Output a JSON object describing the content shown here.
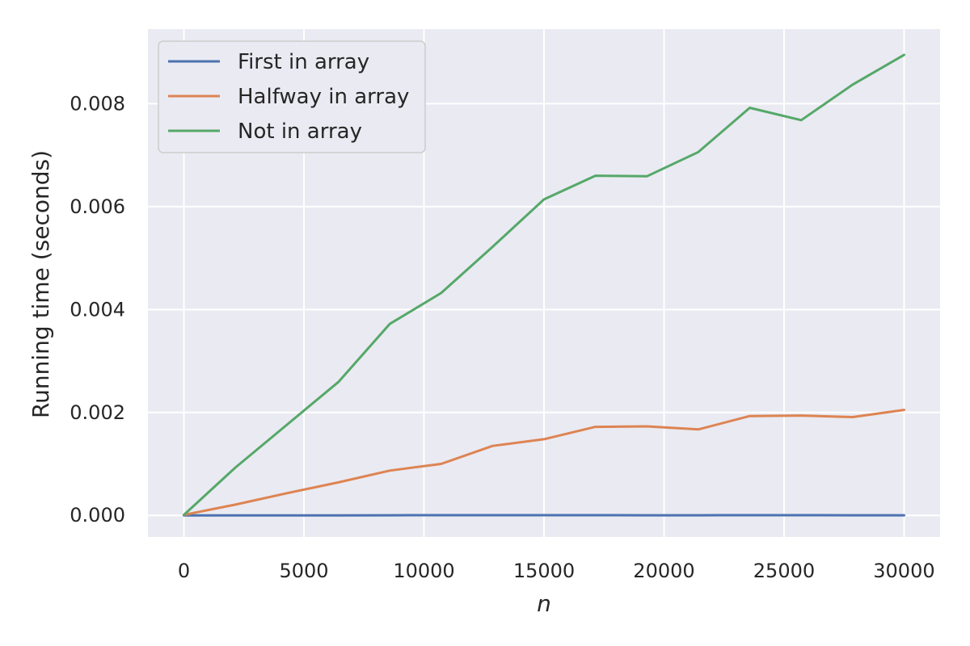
{
  "chart_data": {
    "type": "line",
    "title": "",
    "xlabel": "n",
    "ylabel": "Running time (seconds)",
    "xlim": [
      -1500,
      31500
    ],
    "ylim": [
      -0.00042,
      0.00945
    ],
    "xticks": [
      0,
      5000,
      10000,
      15000,
      20000,
      25000,
      30000
    ],
    "xtick_labels": [
      "0",
      "5000",
      "10000",
      "15000",
      "20000",
      "25000",
      "30000"
    ],
    "yticks": [
      0,
      0.002,
      0.004,
      0.006,
      0.008
    ],
    "ytick_labels": [
      "0.000",
      "0.002",
      "0.004",
      "0.006",
      "0.008"
    ],
    "grid": true,
    "legend_position": "top-left",
    "x": [
      0,
      2143,
      4286,
      6429,
      8571,
      10714,
      12857,
      15000,
      17143,
      19286,
      21429,
      23571,
      25714,
      27857,
      30000
    ],
    "series": [
      {
        "name": "First in array",
        "color": "#4c72b0",
        "values": [
          1e-06,
          1e-06,
          1e-06,
          1e-06,
          2e-06,
          3e-06,
          4e-06,
          3e-06,
          3e-06,
          2e-06,
          2e-06,
          3e-06,
          4e-06,
          2e-06,
          2e-06
        ]
      },
      {
        "name": "Halfway in array",
        "color": "#dd8452",
        "values": [
          1e-05,
          0.00021,
          0.00043,
          0.00064,
          0.00087,
          0.001,
          0.00135,
          0.00148,
          0.00172,
          0.00173,
          0.00167,
          0.00193,
          0.00194,
          0.00191,
          0.00205
        ]
      },
      {
        "name": "Not in array",
        "color": "#55a868",
        "values": [
          1e-05,
          0.00093,
          0.00176,
          0.00259,
          0.00372,
          0.00432,
          0.00522,
          0.00614,
          0.0066,
          0.00659,
          0.00706,
          0.00792,
          0.00768,
          0.00837,
          0.00895
        ]
      }
    ]
  }
}
